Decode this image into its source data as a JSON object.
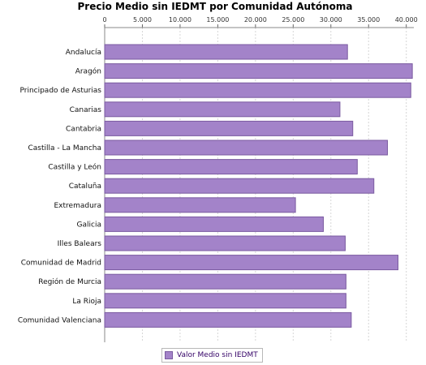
{
  "chart_data": {
    "type": "bar",
    "orientation": "horizontal",
    "title": "Precio Medio sin IEDMT por Comunidad Autónoma",
    "xlabel": "",
    "ylabel": "",
    "xlim": [
      0,
      41000
    ],
    "x_ticks": [
      0,
      5000,
      10000,
      15000,
      20000,
      25000,
      30000,
      35000,
      40000
    ],
    "x_tick_labels": [
      "0",
      "5.000",
      "10.000",
      "15.000",
      "20.000",
      "25.000",
      "30.000",
      "35.000",
      "40.000"
    ],
    "x_axis_position": "top",
    "grid": true,
    "legend_position": "bottom",
    "categories": [
      "Andalucía",
      "Aragón",
      "Principado de Asturias",
      "Canarias",
      "Cantabria",
      "Castilla - La Mancha",
      "Castilla y León",
      "Cataluña",
      "Extremadura",
      "Galicia",
      "Illes Balears",
      "Comunidad de Madrid",
      "Región de Murcia",
      "La Rioja",
      "Comunidad Valenciana"
    ],
    "series": [
      {
        "name": "Valor Medio sin IEDMT",
        "color": "#a383c9",
        "values": [
          32200,
          40800,
          40600,
          31200,
          32900,
          37500,
          33500,
          35700,
          25300,
          29000,
          31900,
          38900,
          32000,
          32000,
          32700
        ]
      }
    ]
  }
}
